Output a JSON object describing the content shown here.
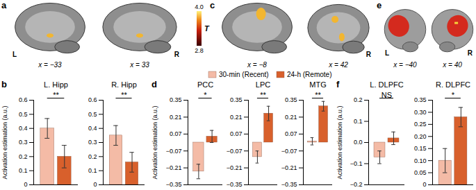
{
  "chart_data": [
    {
      "type": "bar",
      "panel": "b",
      "title": "L. Hipp",
      "ylabel": "Activation estimation (a.u.)",
      "categories": [
        null
      ],
      "series": [
        {
          "name": "30-min (Recent)",
          "color": "#f4bba6",
          "values": [
            0.4
          ],
          "errors": [
            0.07
          ]
        },
        {
          "name": "24-h (Remote)",
          "color": "#d8602c",
          "values": [
            0.2
          ],
          "errors": [
            0.08
          ]
        }
      ],
      "annotations": [
        "**"
      ],
      "ylim": [
        0,
        0.6
      ],
      "yticks": [
        0,
        0.1,
        0.2,
        0.3,
        0.4,
        0.5,
        0.6
      ],
      "tick_labels": "y",
      "legend": "top"
    },
    {
      "type": "bar",
      "title": "R. Hipp",
      "categories": [
        null
      ],
      "series": [
        {
          "name": "30-min (Recent)",
          "color": "#f4bba6",
          "values": [
            0.35
          ],
          "errors": [
            0.07
          ]
        },
        {
          "name": "24-h (Remote)",
          "color": "#d8602c",
          "values": [
            0.16
          ],
          "errors": [
            0.07
          ]
        }
      ],
      "annotations": [
        "**"
      ],
      "ylim": [
        0,
        0.6
      ],
      "yticks": [
        0,
        0.1,
        0.2,
        0.3,
        0.4,
        0.5,
        0.6
      ],
      "tick_labels": "y"
    },
    {
      "type": "bar",
      "panel": "d",
      "title": "PCC",
      "ylabel": "Activation estimation (a.u.)",
      "categories": [
        null
      ],
      "series": [
        {
          "name": "30-min (Recent)",
          "color": "#f4bba6",
          "values": [
            -0.24
          ],
          "errors": [
            0.06
          ]
        },
        {
          "name": "24-h (Remote)",
          "color": "#d8602c",
          "values": [
            0.05
          ],
          "errors": [
            0.05
          ]
        }
      ],
      "annotations": [
        "*"
      ],
      "ylim": [
        -0.35,
        0.35
      ],
      "yticks": [
        {
          "value": -0.35,
          "label": "−0.35"
        },
        {
          "value": -0.21,
          "label": "−0.21"
        },
        {
          "value": -0.07,
          "label": "−0.07"
        },
        0.07,
        0.21,
        0.35
      ],
      "tick_labels": "y"
    },
    {
      "type": "bar",
      "title": "LPC",
      "categories": [
        null
      ],
      "series": [
        {
          "name": "30-min (Recent)",
          "color": "#f4bba6",
          "values": [
            -0.12
          ],
          "errors": [
            0.05
          ]
        },
        {
          "name": "24-h (Remote)",
          "color": "#d8602c",
          "values": [
            0.24
          ],
          "errors": [
            0.06
          ]
        }
      ],
      "annotations": [
        "**"
      ],
      "ylim": [
        -0.35,
        0.35
      ],
      "yticks": [
        {
          "value": -0.35,
          "label": "−0.35"
        },
        {
          "value": -0.21,
          "label": "−0.21"
        },
        {
          "value": -0.07,
          "label": "−0.07"
        },
        0.07,
        0.21,
        0.35
      ],
      "tick_labels": "y"
    },
    {
      "type": "bar",
      "title": "MTG",
      "categories": [
        null
      ],
      "series": [
        {
          "name": "30-min (Recent)",
          "color": "#f4bba6",
          "values": [
            0.01
          ],
          "errors": [
            0.03
          ]
        },
        {
          "name": "24-h (Remote)",
          "color": "#d8602c",
          "values": [
            0.3
          ],
          "errors": [
            0.04
          ]
        }
      ],
      "annotations": [
        "**"
      ],
      "ylim": [
        -0.35,
        0.35
      ],
      "yticks": [
        {
          "value": -0.35,
          "label": "−0.35"
        },
        {
          "value": -0.21,
          "label": "−0.21"
        },
        {
          "value": -0.07,
          "label": "−0.07"
        },
        0.07,
        0.21,
        0.35
      ],
      "tick_labels": "y"
    },
    {
      "type": "bar",
      "panel": "f",
      "title": "L. DLPFC",
      "ylabel": "Activation estimation (a.u.)",
      "categories": [
        null
      ],
      "series": [
        {
          "name": "30-min (Recent)",
          "color": "#f4bba6",
          "values": [
            -0.07
          ],
          "errors": [
            0.03
          ]
        },
        {
          "name": "24-h (Remote)",
          "color": "#d8602c",
          "values": [
            0.02
          ],
          "errors": [
            0.03
          ]
        }
      ],
      "annotations": [
        "NS"
      ],
      "ylim": [
        -0.2,
        0.2
      ],
      "yticks": [
        {
          "value": -0.2,
          "label": "−0.2"
        },
        {
          "value": -0.1,
          "label": "−0.1"
        },
        {
          "value": 0,
          "label": "0.0"
        },
        0.1,
        0.2
      ],
      "tick_labels": "y"
    },
    {
      "type": "bar",
      "title": "R. DLPFC",
      "categories": [
        null
      ],
      "series": [
        {
          "name": "30-min (Recent)",
          "color": "#f4bba6",
          "values": [
            0.1
          ],
          "errors": [
            0.05
          ]
        },
        {
          "name": "24-h (Remote)",
          "color": "#d8602c",
          "values": [
            0.28
          ],
          "errors": [
            0.04
          ]
        }
      ],
      "annotations": [
        "*"
      ],
      "ylim": [
        0,
        0.35
      ],
      "yticks": [
        0,
        0.05,
        {
          "value": 0.1,
          "label": "0.10"
        },
        0.15,
        {
          "value": 0.2,
          "label": "0.20"
        },
        0.25,
        {
          "value": 0.3,
          "label": "0.30"
        },
        0.35
      ],
      "tick_labels": "y"
    }
  ],
  "images": [
    {
      "panel": "a",
      "views": [
        {
          "side": "L",
          "label": "x = −33"
        },
        {
          "side": "R",
          "label": "x = 33"
        }
      ]
    },
    {
      "panel": "c",
      "views": [
        {
          "label": "x = −8"
        },
        {
          "side": "R",
          "label": "x = 42"
        }
      ]
    },
    {
      "panel": "e",
      "views": [
        {
          "side": "L",
          "label": "x = −40"
        },
        {
          "side": "R",
          "label": "x = 40"
        }
      ]
    }
  ],
  "colorbar": {
    "label": "T",
    "range": [
      2.8,
      4.0
    ],
    "ticks": [
      {
        "value": 4.0,
        "label": "4.0"
      },
      {
        "value": 2.8,
        "label": "2.8"
      }
    ]
  }
}
